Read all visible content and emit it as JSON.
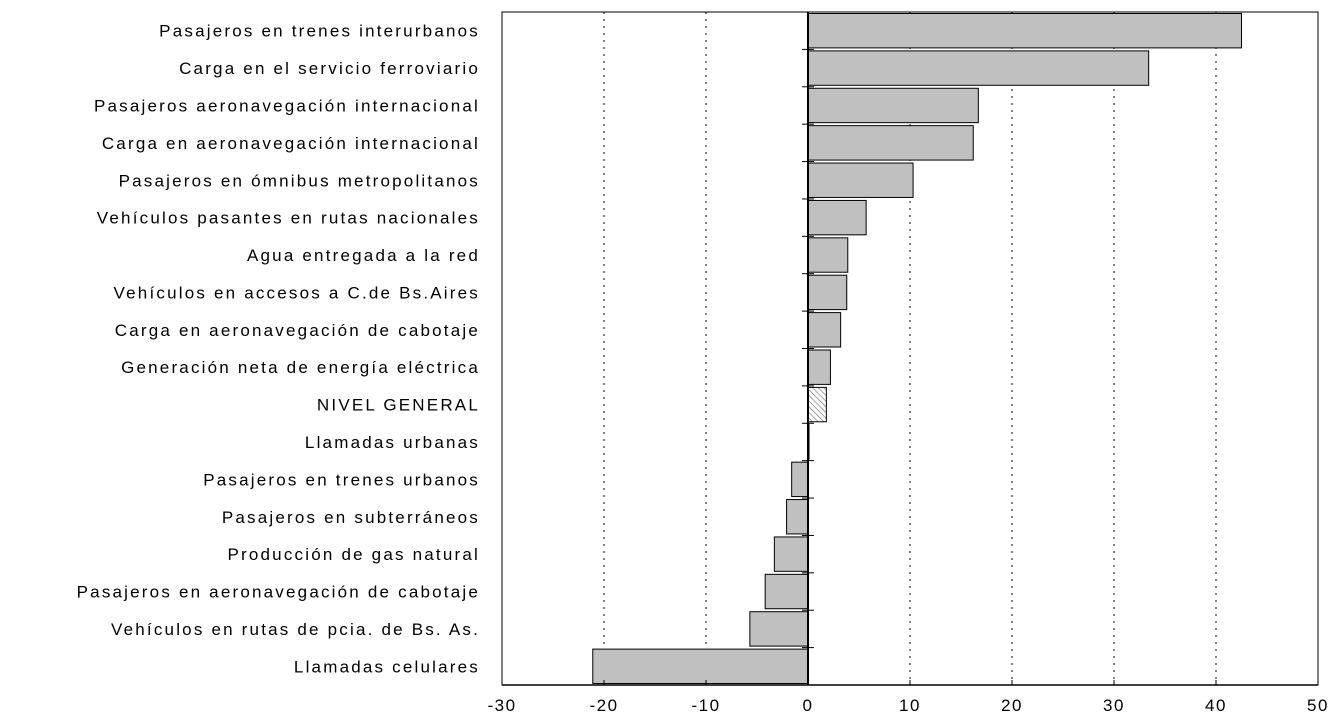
{
  "chart_data": {
    "type": "bar",
    "orientation": "horizontal",
    "categories": [
      "Pasajeros en trenes interurbanos",
      "Carga en el servicio ferroviario",
      "Pasajeros aeronavegación internacional",
      "Carga en aeronavegación internacional",
      "Pasajeros en ómnibus metropolitanos",
      "Vehículos pasantes en rutas nacionales",
      "Agua entregada a la red",
      "Vehículos en accesos a C.de Bs.Aires",
      "Carga en aeronavegación de cabotaje",
      "Generación neta de energía eléctrica",
      "NIVEL GENERAL",
      "Llamadas urbanas",
      "Pasajeros en trenes urbanos",
      "Pasajeros en subterráneos",
      "Producción de gas natural",
      "Pasajeros en aeronavegación de cabotaje",
      "Vehículos en rutas de pcia. de Bs. As.",
      "Llamadas celulares"
    ],
    "values": [
      42.5,
      33.4,
      16.7,
      16.2,
      10.3,
      5.7,
      3.9,
      3.8,
      3.2,
      2.2,
      1.8,
      0.1,
      -1.6,
      -2.1,
      -3.3,
      -4.2,
      -5.7,
      -21.1
    ],
    "highlight_category": "NIVEL GENERAL",
    "xlim": [
      -30,
      50
    ],
    "xticks": [
      -30,
      -20,
      -10,
      0,
      10,
      20,
      30,
      40,
      50
    ],
    "grid": "vertical dotted",
    "colors": {
      "bar_fill": "#c0c0c0",
      "bar_stroke": "#000000",
      "highlight_hatch": "#808080",
      "grid": "#000000",
      "axis": "#000000"
    },
    "title": "",
    "xlabel": "",
    "ylabel": ""
  }
}
